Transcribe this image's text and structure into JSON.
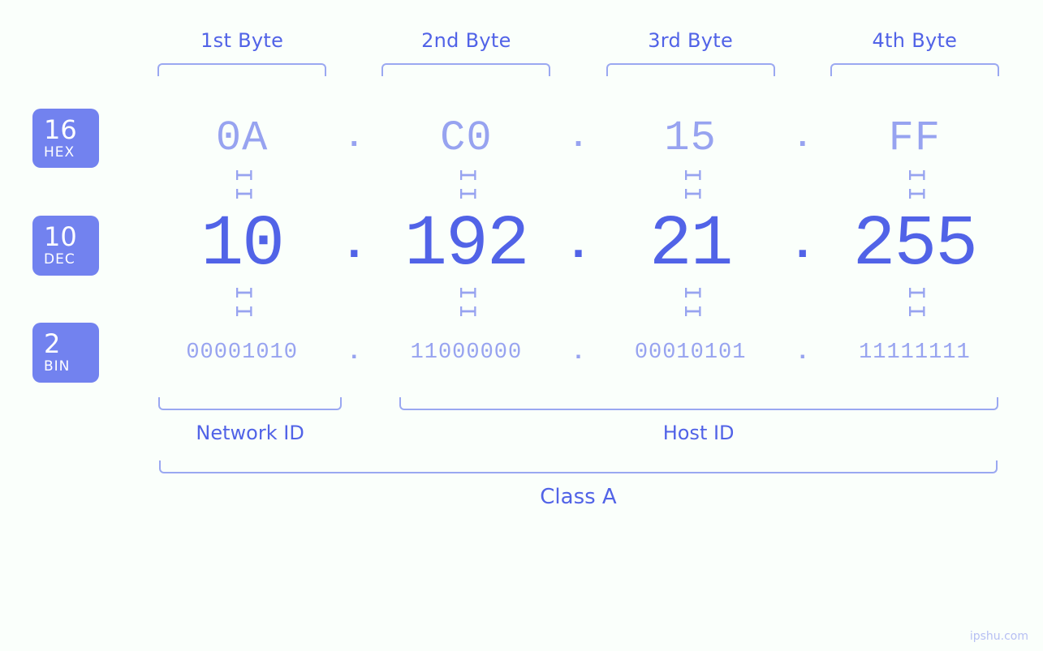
{
  "type": "infographic",
  "colors": {
    "background": "#fafffb",
    "primary": "#5163e7",
    "primary_light": "#97a3f0",
    "badge_bg": "#7282ef",
    "badge_text": "#ffffff",
    "bracket": "#9aa8f1"
  },
  "typography": {
    "byte_label_fontsize": 24,
    "hex_fontsize": 52,
    "dec_fontsize": 88,
    "bin_fontsize": 27,
    "equals_fontsize": 30,
    "badge_num_fontsize": 32,
    "badge_name_fontsize": 17,
    "bottom_label_fontsize": 24,
    "class_label_fontsize": 26,
    "watermark_fontsize": 14,
    "font_family_mono": "Consolas, Menlo, Monaco, monospace",
    "font_family_sans": "system-ui, -apple-system, Segoe UI, sans-serif"
  },
  "byte_headers": [
    "1st Byte",
    "2nd Byte",
    "3rd Byte",
    "4th Byte"
  ],
  "bases": [
    {
      "num": "16",
      "name": "HEX"
    },
    {
      "num": "10",
      "name": "DEC"
    },
    {
      "num": "2",
      "name": "BIN"
    }
  ],
  "hex": [
    "0A",
    "C0",
    "15",
    "FF"
  ],
  "dec": [
    "10",
    "192",
    "21",
    "255"
  ],
  "bin": [
    "00001010",
    "11000000",
    "00010101",
    "11111111"
  ],
  "separator": ".",
  "equals_glyph": "II",
  "bottom_groups": {
    "network": {
      "label": "Network ID",
      "span_bytes": [
        1
      ]
    },
    "host": {
      "label": "Host ID",
      "span_bytes": [
        2,
        3,
        4
      ]
    }
  },
  "class_label": "Class A",
  "watermark": "ipshu.com"
}
